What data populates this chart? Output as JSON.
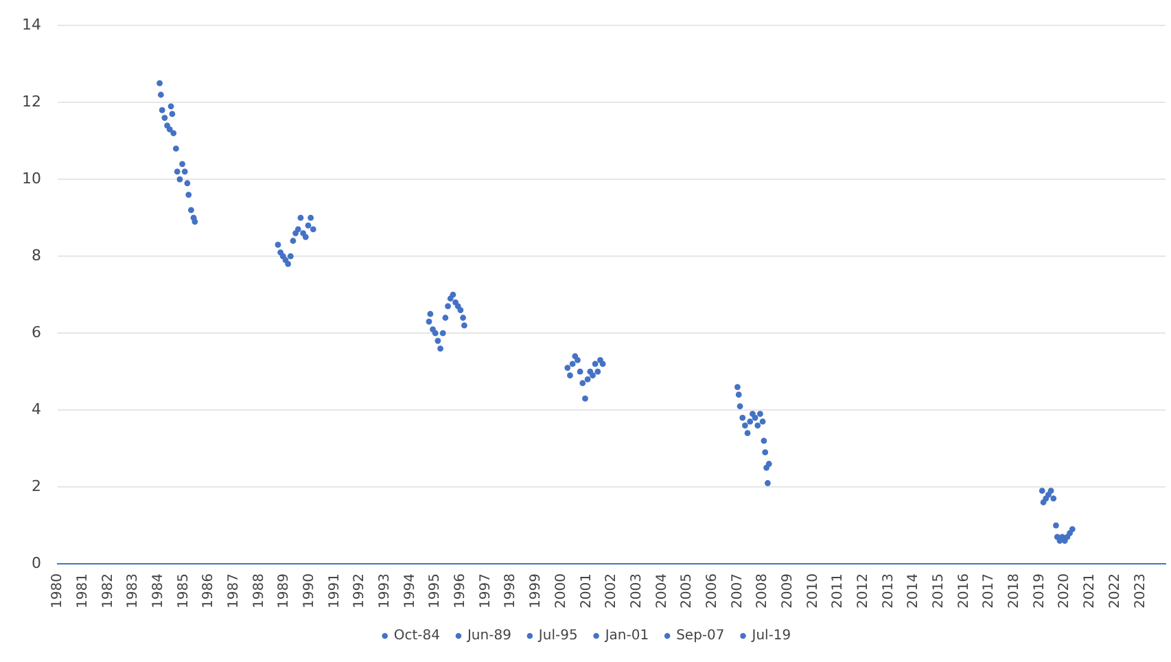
{
  "chart_data": {
    "type": "scatter",
    "xlim": [
      1980,
      2024
    ],
    "xticks": [
      1980,
      1981,
      1982,
      1983,
      1984,
      1985,
      1986,
      1987,
      1988,
      1989,
      1990,
      1991,
      1992,
      1993,
      1994,
      1995,
      1996,
      1997,
      1998,
      1999,
      2000,
      2001,
      2002,
      2003,
      2004,
      2005,
      2006,
      2007,
      2008,
      2009,
      2010,
      2011,
      2012,
      2013,
      2014,
      2015,
      2016,
      2017,
      2018,
      2019,
      2020,
      2021,
      2022,
      2023
    ],
    "ylim": [
      0,
      14
    ],
    "yticks": [
      0,
      2,
      4,
      6,
      8,
      10,
      12,
      14
    ],
    "grid": "y",
    "legend": "bottom",
    "marker": "circle",
    "series": [
      {
        "name": "Oct-84",
        "color": "#4472c4",
        "x": [
          1984.05,
          1984.1,
          1984.15,
          1984.25,
          1984.35,
          1984.45,
          1984.5,
          1984.55,
          1984.6,
          1984.7,
          1984.75,
          1984.85,
          1984.95,
          1985.05,
          1985.15,
          1985.2,
          1985.3,
          1985.4,
          1985.45
        ],
        "values": [
          12.5,
          12.2,
          11.8,
          11.6,
          11.4,
          11.3,
          11.9,
          11.7,
          11.2,
          10.8,
          10.2,
          10.0,
          10.4,
          10.2,
          9.9,
          9.6,
          9.2,
          9.0,
          8.9
        ]
      },
      {
        "name": "Jun-89",
        "color": "#4472c4",
        "x": [
          1988.75,
          1988.85,
          1988.95,
          1989.05,
          1989.15,
          1989.25,
          1989.35,
          1989.45,
          1989.55,
          1989.65,
          1989.75,
          1989.85,
          1989.95,
          1990.05,
          1990.15
        ],
        "values": [
          8.3,
          8.1,
          8.0,
          7.9,
          7.8,
          8.0,
          8.4,
          8.6,
          8.7,
          9.0,
          8.6,
          8.5,
          8.8,
          9.0,
          8.7
        ]
      },
      {
        "name": "Jul-95",
        "color": "#4472c4",
        "x": [
          1994.75,
          1994.8,
          1994.9,
          1995.0,
          1995.1,
          1995.2,
          1995.3,
          1995.4,
          1995.5,
          1995.6,
          1995.7,
          1995.8,
          1995.9,
          1996.0,
          1996.1,
          1996.15
        ],
        "values": [
          6.3,
          6.5,
          6.1,
          6.0,
          5.8,
          5.6,
          6.0,
          6.4,
          6.7,
          6.9,
          7.0,
          6.8,
          6.7,
          6.6,
          6.4,
          6.2
        ]
      },
      {
        "name": "Jan-01",
        "color": "#4472c4",
        "x": [
          2000.25,
          2000.35,
          2000.45,
          2000.55,
          2000.65,
          2000.75,
          2000.85,
          2000.95,
          2001.05,
          2001.15,
          2001.25,
          2001.35,
          2001.45,
          2001.55,
          2001.65
        ],
        "values": [
          5.1,
          4.9,
          5.2,
          5.4,
          5.3,
          5.0,
          4.7,
          4.3,
          4.8,
          5.0,
          4.9,
          5.2,
          5.0,
          5.3,
          5.2
        ]
      },
      {
        "name": "Sep-07",
        "color": "#4472c4",
        "x": [
          2007.0,
          2007.05,
          2007.1,
          2007.2,
          2007.3,
          2007.4,
          2007.5,
          2007.6,
          2007.7,
          2007.8,
          2007.9,
          2008.0,
          2008.05,
          2008.1,
          2008.15,
          2008.2,
          2008.25
        ],
        "values": [
          4.6,
          4.4,
          4.1,
          3.8,
          3.6,
          3.4,
          3.7,
          3.9,
          3.8,
          3.6,
          3.9,
          3.7,
          3.2,
          2.9,
          2.5,
          2.1,
          2.6
        ]
      },
      {
        "name": "Jul-19",
        "color": "#4472c4",
        "x": [
          2019.1,
          2019.15,
          2019.25,
          2019.35,
          2019.45,
          2019.55,
          2019.65,
          2019.7,
          2019.8,
          2019.9,
          2020.0,
          2020.1,
          2020.2,
          2020.3
        ],
        "values": [
          1.9,
          1.6,
          1.7,
          1.8,
          1.9,
          1.7,
          1.0,
          0.7,
          0.6,
          0.7,
          0.6,
          0.7,
          0.8,
          0.9
        ]
      }
    ]
  }
}
